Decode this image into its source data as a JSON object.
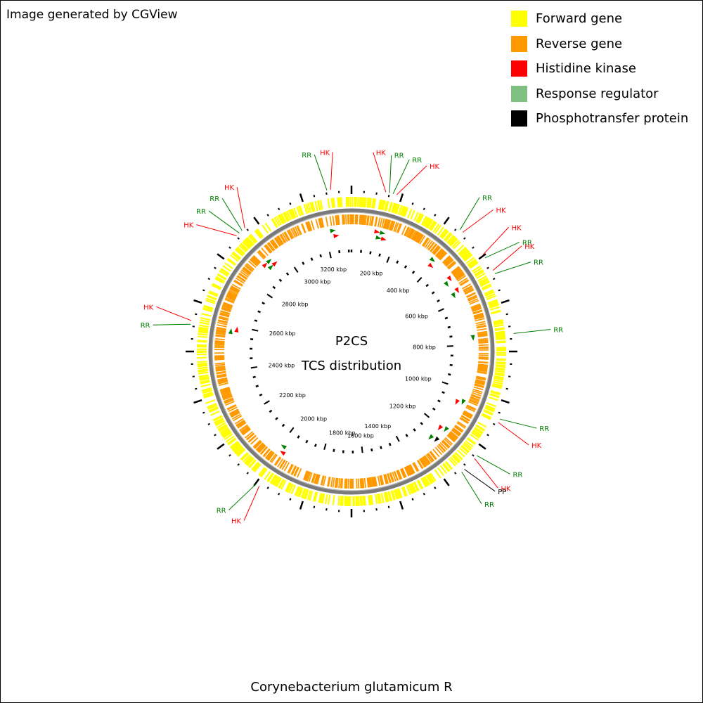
{
  "credit": "Image generated by CGView",
  "organism": "Corynebacterium glutamicum R",
  "center_title": "P2CS",
  "center_subtitle": "TCS distribution",
  "legend": [
    {
      "label": "Forward gene",
      "color": "#ffff00"
    },
    {
      "label": "Reverse gene",
      "color": "#ff9900"
    },
    {
      "label": "Histidine kinase",
      "color": "#ff0000"
    },
    {
      "label": "Response regulator",
      "color": "#7fbf7f"
    },
    {
      "label": "Phosphotransfer protein",
      "color": "#000000"
    }
  ],
  "genome_kbp": 3314,
  "ruler_labels": [
    "200 kbp",
    "400 kbp",
    "600 kbp",
    "800 kbp",
    "1000 kbp",
    "1200 kbp",
    "1400 kbp",
    "1600 kbp",
    "1800 kbp",
    "2000 kbp",
    "2200 kbp",
    "2400 kbp",
    "2600 kbp",
    "2800 kbp",
    "3000 kbp",
    "3200 kbp"
  ],
  "features": [
    {
      "kbp": 3240,
      "labels": [
        "RR",
        "HK"
      ]
    },
    {
      "kbp": 130,
      "labels": [
        "HK",
        "RR",
        "RR",
        "HK"
      ]
    },
    {
      "kbp": 390,
      "labels": [
        "RR",
        "HK"
      ]
    },
    {
      "kbp": 500,
      "labels": [
        "HK",
        "RR"
      ]
    },
    {
      "kbp": 560,
      "labels": [
        "HK",
        "RR"
      ]
    },
    {
      "kbp": 770,
      "labels": [
        "RR"
      ]
    },
    {
      "kbp": 1060,
      "labels": [
        "RR",
        "HK"
      ]
    },
    {
      "kbp": 1200,
      "labels": [
        "RR",
        "HK"
      ]
    },
    {
      "kbp": 1260,
      "labels": [
        "PP",
        "RR"
      ]
    },
    {
      "kbp": 1980,
      "labels": [
        "HK",
        "RR"
      ]
    },
    {
      "kbp": 2580,
      "labels": [
        "RR",
        "HK"
      ]
    },
    {
      "kbp": 2920,
      "labels": [
        "HK",
        "RR",
        "RR",
        "HK"
      ]
    }
  ]
}
